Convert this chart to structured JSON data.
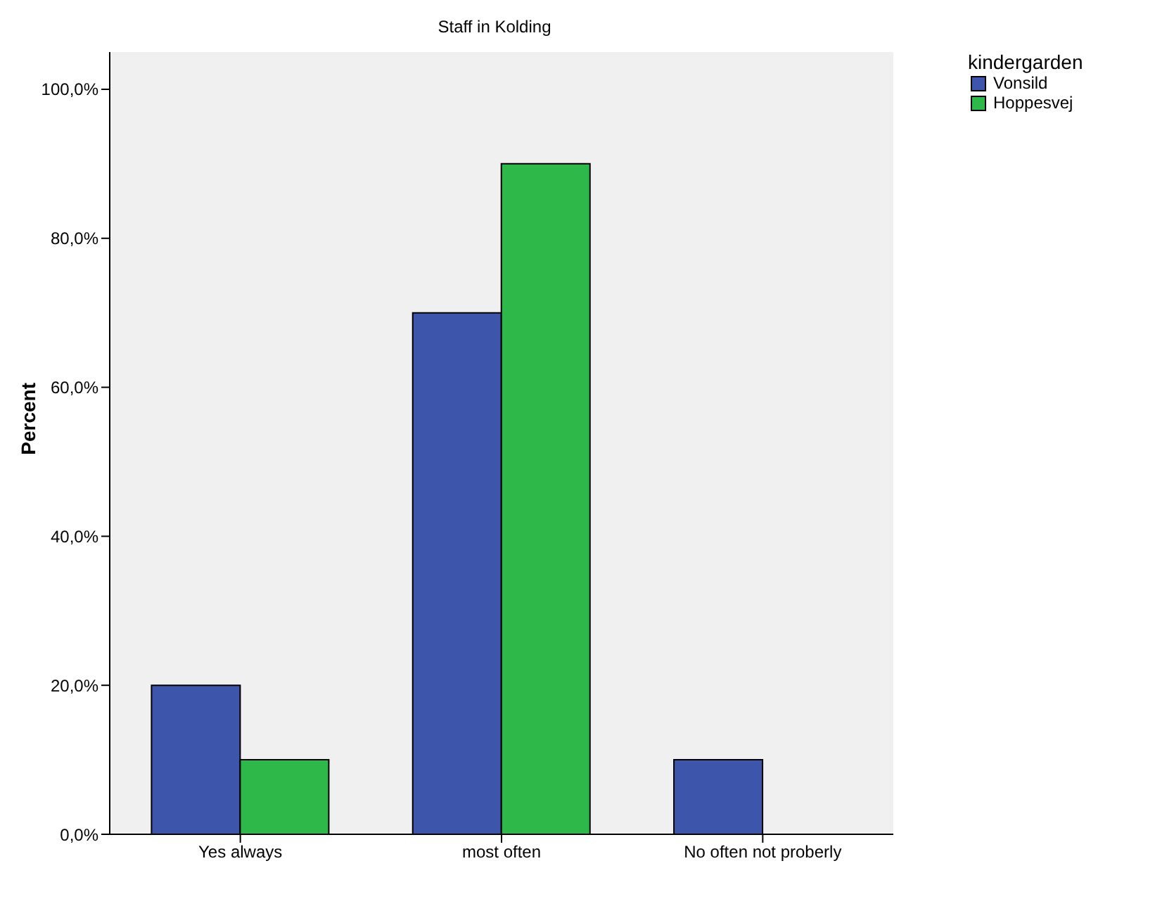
{
  "chart_data": {
    "type": "bar",
    "title": "Staff in Kolding",
    "ylabel": "Percent",
    "legend_title": "kindergarden",
    "categories": [
      "Yes always",
      "most often",
      "No often not proberly"
    ],
    "series": [
      {
        "name": "Vonsild",
        "color": "#3d56ab",
        "values": [
          20,
          70,
          10
        ]
      },
      {
        "name": "Hoppesvej",
        "color": "#2fb84a",
        "values": [
          10,
          90,
          0
        ]
      }
    ],
    "ylim": [
      0,
      105
    ],
    "yticks": [
      {
        "value": 0,
        "label": "0,0%"
      },
      {
        "value": 20,
        "label": "20,0%"
      },
      {
        "value": 40,
        "label": "40,0%"
      },
      {
        "value": 60,
        "label": "60,0%"
      },
      {
        "value": 80,
        "label": "80,0%"
      },
      {
        "value": 100,
        "label": "100,0%"
      }
    ],
    "grid": false,
    "legend": "top right"
  }
}
